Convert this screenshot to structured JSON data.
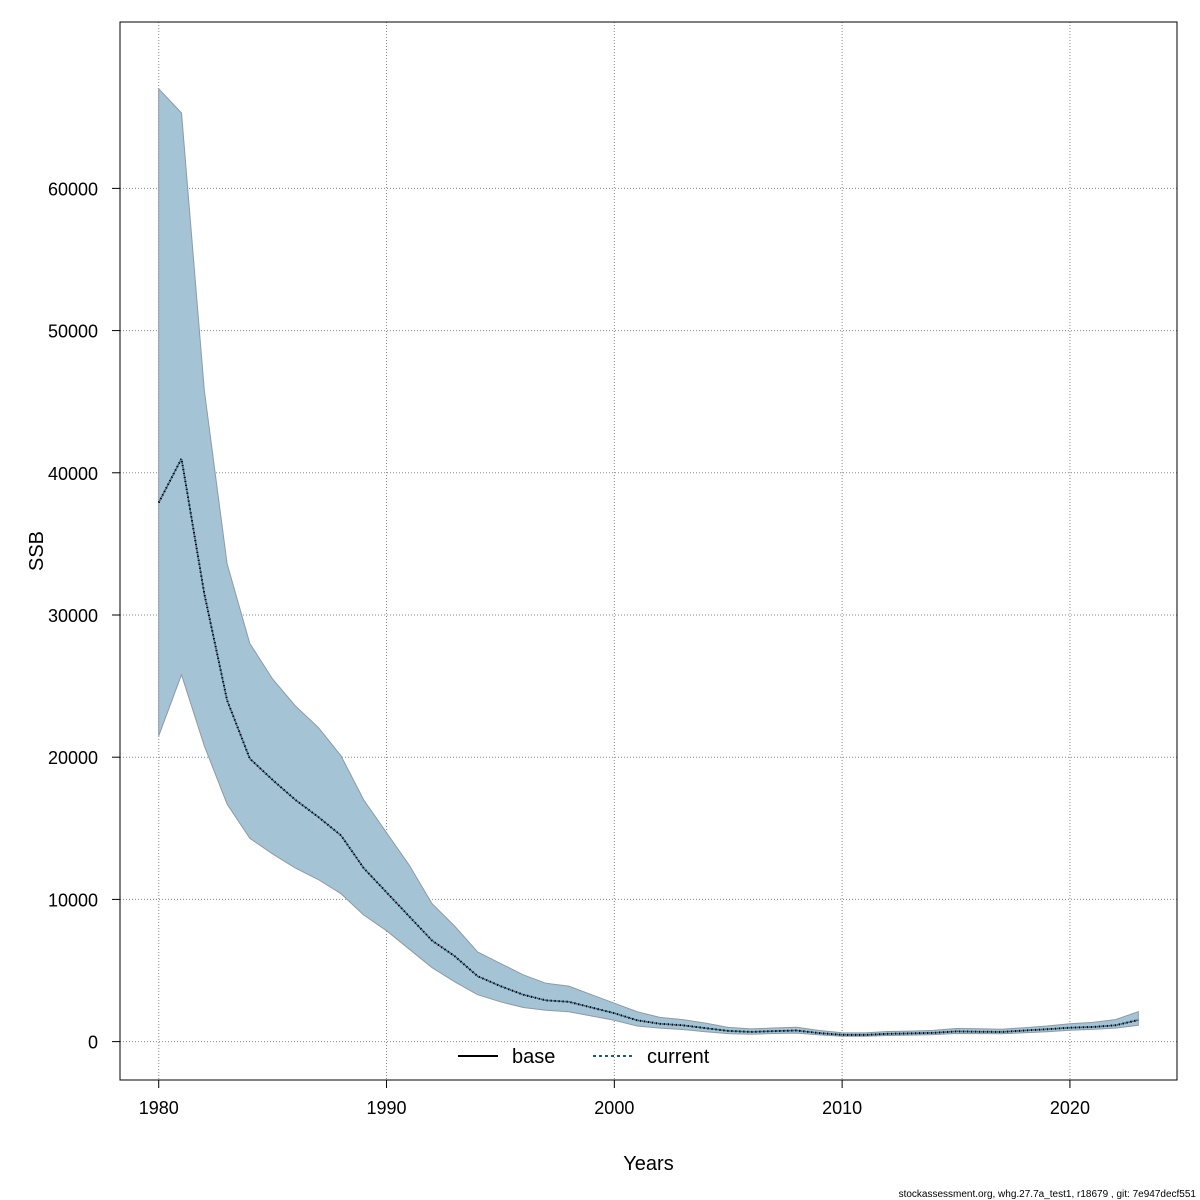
{
  "chart_data": {
    "type": "line",
    "xlabel": "Years",
    "ylabel": "SSB",
    "xlim": [
      1978.3,
      2024.7
    ],
    "ylim": [
      -2700,
      71700
    ],
    "grid": true,
    "xticks": [
      1980,
      1990,
      2000,
      2010,
      2020
    ],
    "yticks": [
      0,
      10000,
      20000,
      30000,
      40000,
      50000,
      60000
    ],
    "legend": {
      "placement": "bottom",
      "entries": [
        "base",
        "current"
      ]
    },
    "colors": {
      "band_fill": "#a4c4d6",
      "band_edge": "#8f9aa2",
      "base_line": "#000000",
      "current_line": "#1a5a80",
      "grid": "#888888"
    },
    "x": [
      1980,
      1981,
      1982,
      1983,
      1984,
      1985,
      1986,
      1987,
      1988,
      1989,
      1990,
      1991,
      1992,
      1993,
      1994,
      1995,
      1996,
      1997,
      1998,
      1999,
      2000,
      2001,
      2002,
      2003,
      2004,
      2005,
      2006,
      2007,
      2008,
      2009,
      2010,
      2011,
      2012,
      2013,
      2014,
      2015,
      2016,
      2017,
      2018,
      2019,
      2020,
      2021,
      2022,
      2023
    ],
    "series": [
      {
        "name": "base",
        "line": "solid",
        "values": [
          37900,
          41000,
          31500,
          24000,
          19900,
          18400,
          17000,
          15800,
          14500,
          12200,
          10500,
          8800,
          7100,
          6000,
          4600,
          3900,
          3300,
          2900,
          2800,
          2400,
          2000,
          1500,
          1250,
          1150,
          950,
          750,
          680,
          740,
          780,
          600,
          480,
          470,
          550,
          580,
          620,
          720,
          700,
          680,
          780,
          870,
          980,
          1030,
          1150,
          1520
        ]
      },
      {
        "name": "current",
        "line": "dotted",
        "values": [
          37900,
          41000,
          31500,
          24000,
          19900,
          18400,
          17000,
          15800,
          14500,
          12200,
          10500,
          8800,
          7100,
          6000,
          4600,
          3900,
          3300,
          2900,
          2800,
          2400,
          2000,
          1500,
          1250,
          1150,
          950,
          750,
          680,
          740,
          780,
          600,
          480,
          470,
          550,
          580,
          620,
          720,
          700,
          680,
          780,
          870,
          980,
          1030,
          1150,
          1520
        ]
      }
    ],
    "band": {
      "lower": [
        21500,
        25800,
        20800,
        16700,
        14300,
        13200,
        12200,
        11400,
        10400,
        8900,
        7800,
        6500,
        5200,
        4200,
        3300,
        2800,
        2400,
        2200,
        2100,
        1800,
        1500,
        1100,
        950,
        850,
        700,
        560,
        520,
        570,
        600,
        470,
        380,
        370,
        430,
        460,
        490,
        570,
        560,
        550,
        620,
        700,
        800,
        860,
        950,
        1150
      ],
      "upper": [
        67000,
        65300,
        45800,
        33600,
        28000,
        25500,
        23600,
        22100,
        20100,
        17000,
        14700,
        12400,
        9700,
        8100,
        6300,
        5500,
        4700,
        4100,
        3900,
        3300,
        2700,
        2100,
        1700,
        1550,
        1300,
        1000,
        890,
        960,
        1010,
        780,
        620,
        610,
        710,
        740,
        790,
        920,
        900,
        870,
        980,
        1100,
        1250,
        1350,
        1550,
        2100
      ]
    },
    "footer_text": "stockassessment.org, whg.27.7a_test1, r18679 , git: 7e947decf551"
  }
}
